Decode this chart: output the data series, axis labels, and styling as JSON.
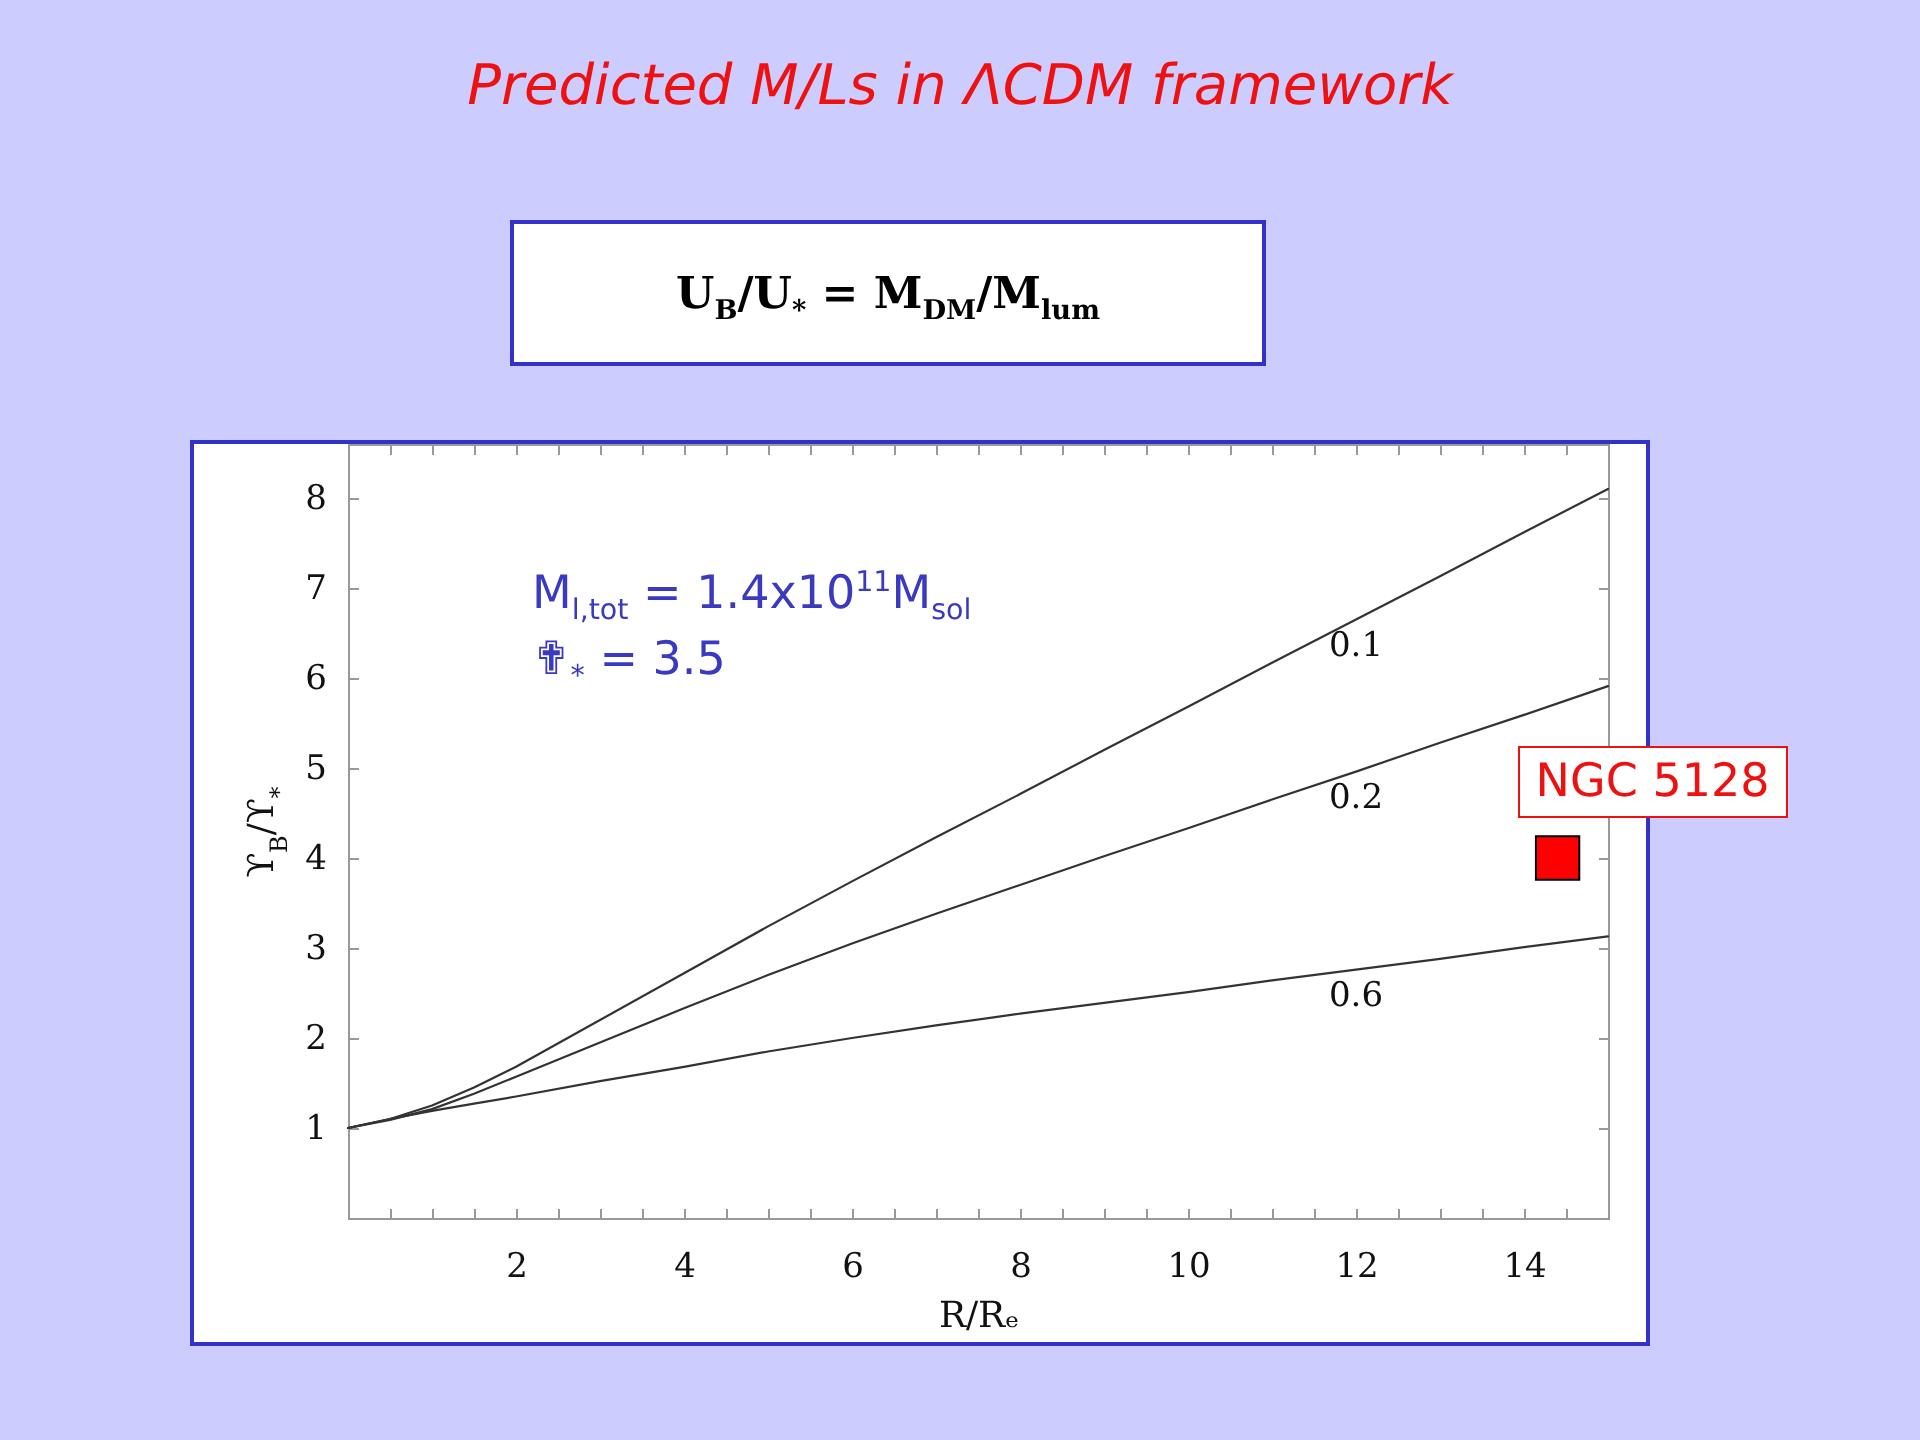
{
  "chart_data": {
    "type": "line",
    "title": "Predicted M/Ls in ΛCDM framework",
    "annotations": [
      "U$_{B}$/U$_{*}$ = M$_{DM}$/M$_{lum}$",
      "M$_{l,tot}$ = 1.4x10$^{11}$M$_{sol}$",
      "✟$_{*}$ = 3.5"
    ],
    "xlabel": "R/Rₑ",
    "ylabel": "ϒ$_{B}$/ϒ$_{*}$",
    "xlim": [
      0,
      15
    ],
    "ylim": [
      0,
      8.6
    ],
    "xticks": [
      {
        "value": 0.5,
        "label": null
      },
      {
        "value": 1,
        "label": null
      },
      {
        "value": 1.5,
        "label": null
      },
      2,
      {
        "value": 2.5,
        "label": null
      },
      {
        "value": 3,
        "label": null
      },
      {
        "value": 3.5,
        "label": null
      },
      4,
      {
        "value": 4.5,
        "label": null
      },
      {
        "value": 5,
        "label": null
      },
      {
        "value": 5.5,
        "label": null
      },
      6,
      {
        "value": 6.5,
        "label": null
      },
      {
        "value": 7,
        "label": null
      },
      {
        "value": 7.5,
        "label": null
      },
      8,
      {
        "value": 8.5,
        "label": null
      },
      {
        "value": 9,
        "label": null
      },
      {
        "value": 9.5,
        "label": null
      },
      10,
      {
        "value": 10.5,
        "label": null
      },
      {
        "value": 11,
        "label": null
      },
      {
        "value": 11.5,
        "label": null
      },
      12,
      {
        "value": 12.5,
        "label": null
      },
      {
        "value": 13,
        "label": null
      },
      {
        "value": 13.5,
        "label": null
      },
      14,
      {
        "value": 14.5,
        "label": null
      }
    ],
    "yticks": [
      1,
      2,
      3,
      4,
      5,
      6,
      7,
      8
    ],
    "series": [
      {
        "name": "0.1",
        "color": "#333333",
        "x": [
          0,
          0.5,
          1,
          1.5,
          2,
          3,
          4,
          5,
          6,
          7,
          8,
          9,
          10,
          11,
          12,
          13,
          14,
          15
        ],
        "values": [
          1,
          1.1,
          1.25,
          1.45,
          1.68,
          2.2,
          2.72,
          3.24,
          3.74,
          4.23,
          4.71,
          5.2,
          5.68,
          6.17,
          6.65,
          7.13,
          7.62,
          8.1
        ]
      },
      {
        "name": "0.2",
        "color": "#333333",
        "x": [
          0,
          0.5,
          1,
          1.5,
          2,
          3,
          4,
          5,
          6,
          7,
          8,
          9,
          10,
          11,
          12,
          13,
          14,
          15
        ],
        "values": [
          1,
          1.09,
          1.21,
          1.38,
          1.57,
          1.95,
          2.33,
          2.7,
          3.05,
          3.38,
          3.7,
          4.02,
          4.33,
          4.65,
          4.96,
          5.28,
          5.59,
          5.91
        ]
      },
      {
        "name": "0.6",
        "color": "#333333",
        "x": [
          0,
          0.5,
          1,
          1.5,
          2,
          3,
          4,
          5,
          6,
          7,
          8,
          9,
          10,
          11,
          12,
          13,
          14,
          15
        ],
        "values": [
          1,
          1.1,
          1.19,
          1.27,
          1.35,
          1.52,
          1.68,
          1.85,
          2,
          2.14,
          2.27,
          2.39,
          2.51,
          2.64,
          2.76,
          2.88,
          3.01,
          3.13
        ]
      },
      {
        "name": "NGC 5128",
        "type": "scatter",
        "marker": "square",
        "color": "#ff0000",
        "x": [
          14.4
        ],
        "values": [
          4.0
        ]
      }
    ]
  }
}
